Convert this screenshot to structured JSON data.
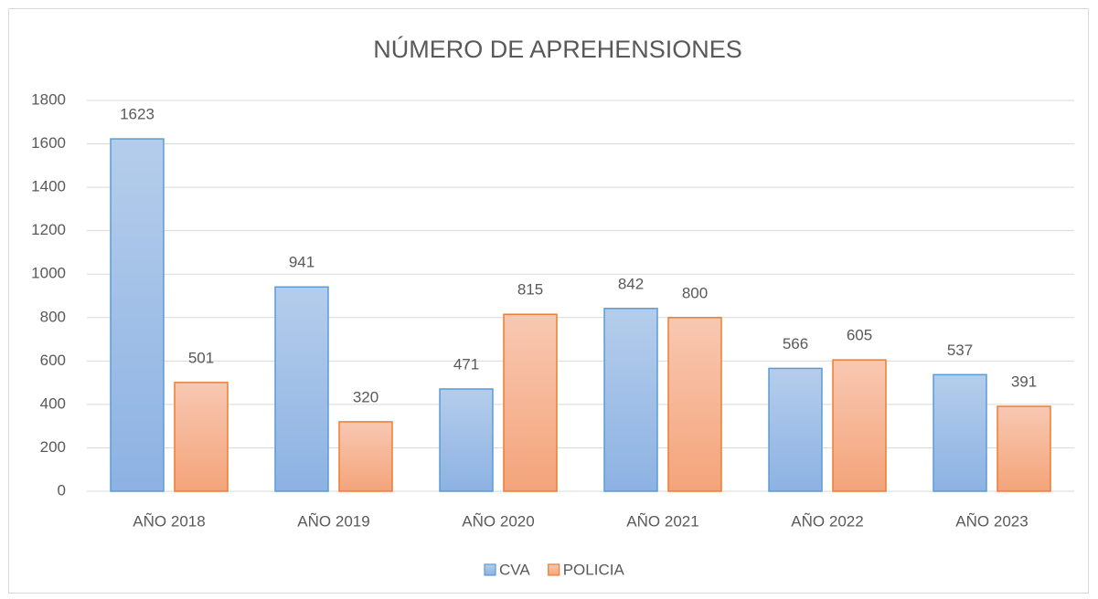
{
  "chart_data": {
    "type": "bar",
    "title": "NÚMERO DE APREHENSIONES",
    "categories": [
      "AÑO 2018",
      "AÑO 2019",
      "AÑO 2020",
      "AÑO 2021",
      "AÑO 2022",
      "AÑO 2023"
    ],
    "series": [
      {
        "name": "CVA",
        "color": "#5b9bd5",
        "values": [
          1623,
          941,
          471,
          842,
          566,
          537
        ]
      },
      {
        "name": "POLICIA",
        "color": "#ed7d31",
        "values": [
          501,
          320,
          815,
          800,
          605,
          391
        ]
      }
    ],
    "ylim": [
      0,
      1800
    ],
    "yticks": [
      0,
      200,
      400,
      600,
      800,
      1000,
      1200,
      1400,
      1600,
      1800
    ],
    "grid": true,
    "legend": "bottom"
  }
}
